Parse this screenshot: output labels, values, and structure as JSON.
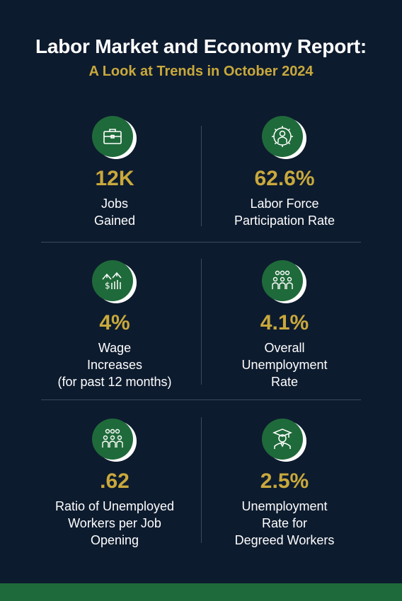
{
  "header": {
    "title": "Labor Market and Economy Report:",
    "subtitle": "A Look at Trends in October 2024"
  },
  "colors": {
    "background": "#0d1b2e",
    "accent_gold": "#c9a93c",
    "icon_green": "#1f6a3a"
  },
  "stats": [
    {
      "icon": "briefcase-icon",
      "value": "12K",
      "label_lines": [
        "Jobs",
        "Gained"
      ]
    },
    {
      "icon": "gear-person-icon",
      "value": "62.6%",
      "label_lines": [
        "Labor Force",
        "Participation Rate"
      ]
    },
    {
      "icon": "dollar-arrows-icon",
      "value": "4%",
      "label_lines": [
        "Wage",
        "Increases",
        "(for past 12 months)"
      ]
    },
    {
      "icon": "group-people-icon",
      "value": "4.1%",
      "label_lines": [
        "Overall",
        "Unemployment",
        "Rate"
      ]
    },
    {
      "icon": "group-people-icon",
      "value": ".62",
      "label_lines": [
        "Ratio of Unemployed",
        "Workers per Job",
        "Opening"
      ]
    },
    {
      "icon": "graduate-icon",
      "value": "2.5%",
      "label_lines": [
        "Unemployment",
        "Rate for",
        "Degreed Workers"
      ]
    }
  ]
}
